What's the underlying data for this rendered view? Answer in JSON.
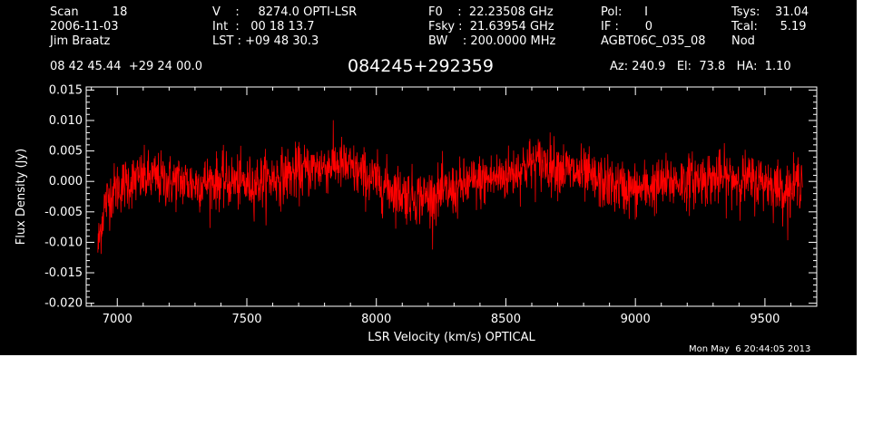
{
  "header": {
    "col1": [
      "Scan         18",
      "2006-11-03",
      "Jim Braatz"
    ],
    "col2": [
      "V    :     8274.0 OPTI-LSR",
      "Int  :   00 18 13.7",
      "LST : +09 48 30.3"
    ],
    "col3": [
      "F0    :  22.23508 GHz",
      "Fsky :  21.63954 GHz",
      "BW    : 200.0000 MHz"
    ],
    "col4": [
      "Pol:      I",
      "IF :       0",
      "AGBT06C_035_08"
    ],
    "col5": [
      "Tsys:    31.04",
      "Tcal:      5.19",
      "Nod"
    ],
    "coords": "08 42 45.44  +29 24 00.0",
    "source": "084245+292359",
    "azel": "Az: 240.9   El:  73.8   HA:  1.10"
  },
  "footer": {
    "timestamp": "Mon May  6 20:44:05 2013"
  },
  "chart_data": {
    "type": "line",
    "xlabel": "LSR Velocity (km/s) OPTICAL",
    "ylabel": "Flux Density (Jy)",
    "xlim": [
      6880,
      9700
    ],
    "ylim": [
      -0.0205,
      0.0155
    ],
    "x_ticks": [
      7000,
      7500,
      8000,
      8500,
      9000,
      9500
    ],
    "y_ticks": [
      -0.02,
      -0.015,
      -0.01,
      -0.005,
      0.0,
      0.005,
      0.01,
      0.015
    ],
    "y_tick_labels": [
      "-0.020",
      "-0.015",
      "-0.010",
      "-0.005",
      "0.000",
      "0.005",
      "0.010",
      "0.015"
    ],
    "grid": false,
    "line_color": "#ff0000",
    "axis_color": "#ffffff",
    "background": "#000000",
    "series": [
      {
        "x": [
          6925,
          6935,
          6950,
          6975,
          7000,
          7050,
          7100,
          7150,
          7200,
          7250,
          7300,
          7350,
          7400,
          7450,
          7500,
          7550,
          7600,
          7650,
          7700,
          7750,
          7800,
          7850,
          7900,
          7950,
          8000,
          8050,
          8100,
          8150,
          8200,
          8250,
          8300,
          8350,
          8400,
          8450,
          8500,
          8550,
          8600,
          8650,
          8700,
          8750,
          8800,
          8850,
          8900,
          8950,
          9000,
          9050,
          9100,
          9150,
          9200,
          9250,
          9300,
          9350,
          9400,
          9450,
          9500,
          9550,
          9600,
          9645
        ],
        "values": [
          -0.011,
          -0.008,
          -0.004,
          -0.002,
          -0.001,
          0.0,
          0.0005,
          0.0005,
          0.0,
          0.0,
          -0.0005,
          0.0,
          0.0,
          0.0,
          -0.0005,
          0.0,
          0.0005,
          0.001,
          0.0015,
          0.002,
          0.0025,
          0.003,
          0.002,
          0.001,
          0.0,
          -0.001,
          -0.002,
          -0.0025,
          -0.0025,
          -0.002,
          -0.0015,
          -0.0005,
          0.0,
          0.0005,
          0.001,
          0.002,
          0.003,
          0.003,
          0.0025,
          0.0015,
          0.001,
          0.0,
          -0.0005,
          -0.001,
          -0.0015,
          -0.001,
          -0.0005,
          0.0,
          0.0,
          0.0005,
          0.0005,
          0.0005,
          0.0005,
          0.0,
          0.0,
          -0.001,
          -0.0015,
          0.001
        ],
        "noise_rms": 0.0022
      }
    ]
  }
}
